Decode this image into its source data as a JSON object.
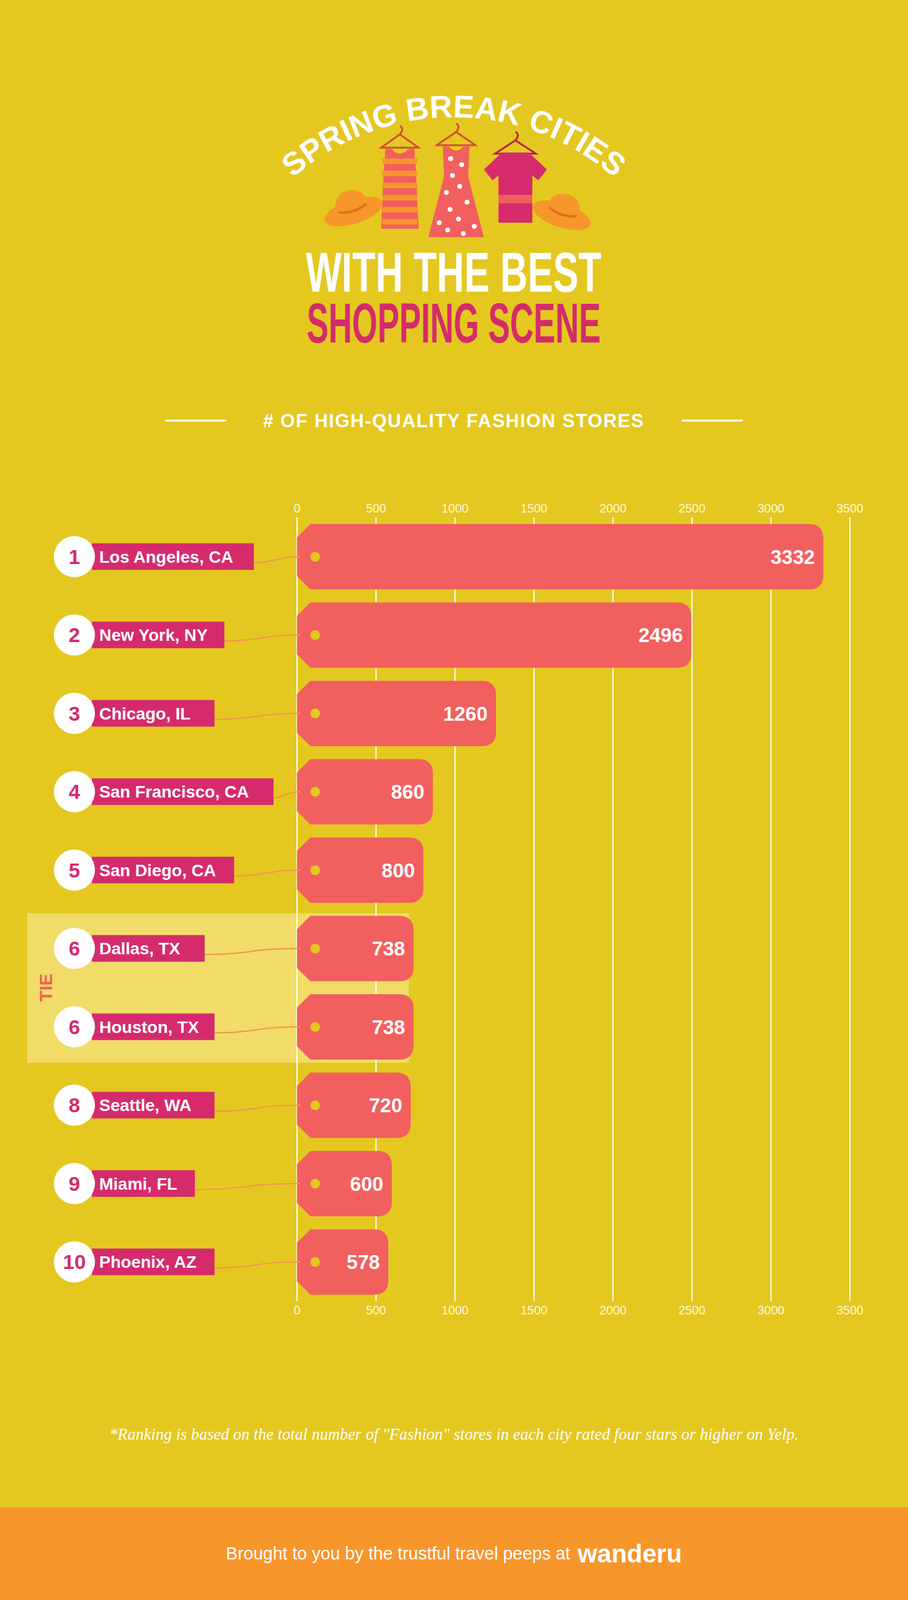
{
  "chart_data": {
    "type": "bar",
    "title": [
      "SPRING BREAK CITIES",
      "WITH THE BEST",
      "SHOPPING SCENE"
    ],
    "subtitle": "# OF HIGH-QUALITY FASHION STORES",
    "categories": [
      "Los Angeles, CA",
      "New York, NY",
      "Chicago, IL",
      "San Francisco, CA",
      "San Diego, CA",
      "Dallas, TX",
      "Houston, TX",
      "Seattle, WA",
      "Miami, FL",
      "Phoenix, AZ"
    ],
    "ranks": [
      "1",
      "2",
      "3",
      "4",
      "5",
      "6",
      "6",
      "8",
      "9",
      "10"
    ],
    "values": [
      3332,
      2496,
      1260,
      860,
      800,
      738,
      738,
      720,
      600,
      578
    ],
    "color": "#f25f5f",
    "orientation": "horizontal",
    "data_labels": true,
    "grid": true,
    "xlim": [
      0,
      3500
    ],
    "xticks": [
      0,
      500,
      1000,
      1500,
      2000,
      2500,
      3000,
      3500
    ],
    "annotations": [
      {
        "text": "TIE",
        "categories": [
          "Dallas, TX",
          "Houston, TX"
        ]
      }
    ],
    "footnote": "*Ranking is based on the total number of \"Fashion\" stores in each city rated four stars or higher on Yelp.",
    "credit": {
      "text": "Brought to you by the trustful travel peeps at",
      "brand": "wanderu"
    }
  }
}
